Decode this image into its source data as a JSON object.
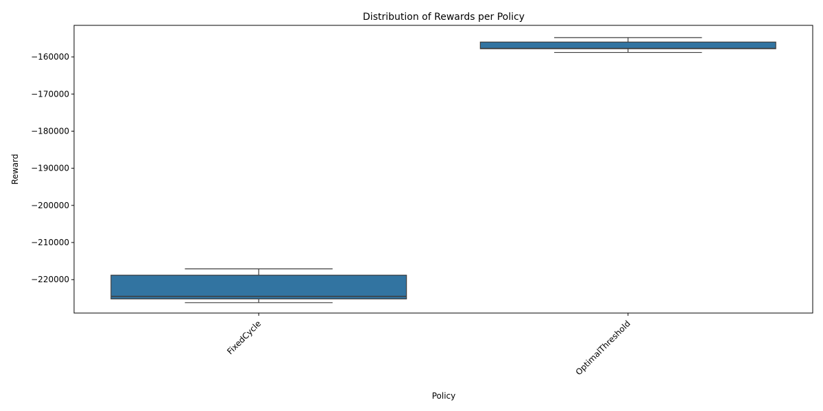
{
  "chart_data": {
    "type": "box",
    "title": "Distribution of Rewards per Policy",
    "xlabel": "Policy",
    "ylabel": "Reward",
    "ylim": [
      -229000,
      -151500
    ],
    "yticks": [
      -160000,
      -170000,
      -180000,
      -190000,
      -200000,
      -210000,
      -220000
    ],
    "ytick_labels": [
      "−160000",
      "−170000",
      "−180000",
      "−190000",
      "−200000",
      "−210000",
      "−220000"
    ],
    "categories": [
      "FixedCycle",
      "OptimalThreshold"
    ],
    "boxes": [
      {
        "category": "FixedCycle",
        "whisker_low": -226200,
        "q1": -225200,
        "median": -224500,
        "q3": -218800,
        "whisker_high": -217100
      },
      {
        "category": "OptimalThreshold",
        "whisker_low": -158800,
        "q1": -157800,
        "median": -157700,
        "q3": -156000,
        "whisker_high": -154800
      }
    ],
    "box_color": "#3274a1",
    "line_color": "#3d3d3d",
    "legend": "none",
    "grid": false
  }
}
